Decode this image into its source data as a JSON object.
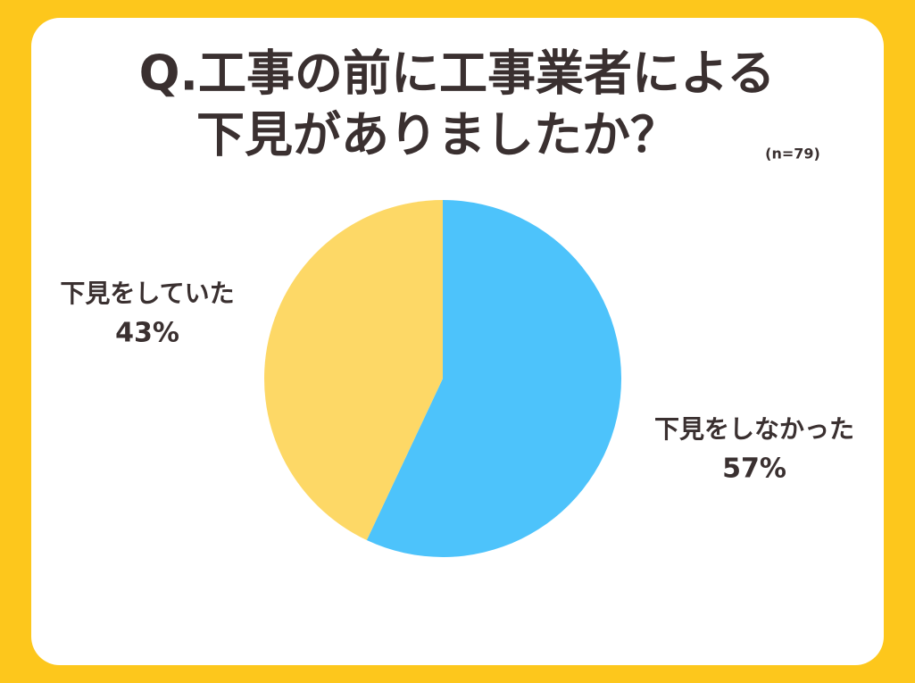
{
  "chart_data": {
    "type": "pie",
    "title": [
      "Q.工事の前に工事業者による",
      "下見がありましたか？"
    ],
    "note": "(n=79)",
    "categories": [
      "下見をしなかった",
      "下見をしていた"
    ],
    "values": [
      57,
      43
    ],
    "value_labels": [
      "57%",
      "43%"
    ],
    "colors": [
      "#4dc3fb",
      "#fdd866"
    ]
  }
}
